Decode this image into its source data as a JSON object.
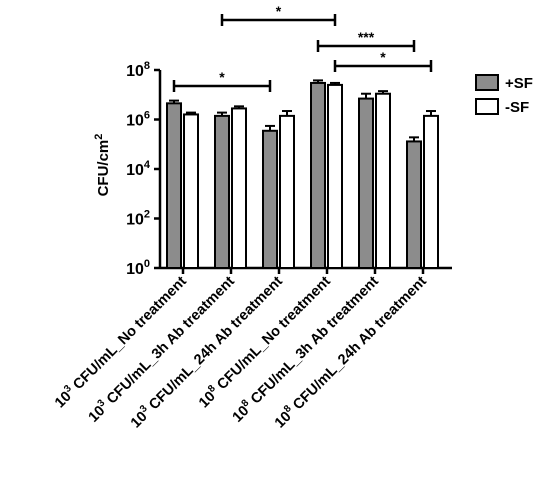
{
  "chart_data": {
    "type": "bar",
    "ylabel": "CFU/cm",
    "ylabel_sup": "2",
    "yscale": "log",
    "ylim": [
      1,
      100000000
    ],
    "yticks": [
      {
        "base": "10",
        "exp": "0",
        "value": 1
      },
      {
        "base": "10",
        "exp": "2",
        "value": 100
      },
      {
        "base": "10",
        "exp": "4",
        "value": 10000
      },
      {
        "base": "10",
        "exp": "6",
        "value": 1000000
      },
      {
        "base": "10",
        "exp": "8",
        "value": 100000000
      }
    ],
    "categories": [
      {
        "pre": "10",
        "sup": "3",
        "rest": " CFU/mL_No treatment"
      },
      {
        "pre": "10",
        "sup": "3",
        "rest": " CFU/mL_3h Ab treatment"
      },
      {
        "pre": "10",
        "sup": "3",
        "rest": " CFU/mL_24h Ab treatment"
      },
      {
        "pre": "10",
        "sup": "8",
        "rest": " CFU/mL_No treatment"
      },
      {
        "pre": "10",
        "sup": "8",
        "rest": " CFU/mL_3h Ab treatment"
      },
      {
        "pre": "10",
        "sup": "8",
        "rest": " CFU/mL_24h Ab treatment"
      }
    ],
    "series": [
      {
        "name": "+SF",
        "color": "#8c8c8c",
        "values": [
          4500000,
          1400000,
          350000,
          30000000,
          7000000,
          130000
        ],
        "errors": [
          5800000,
          1900000,
          550000,
          38000000,
          11000000,
          190000
        ]
      },
      {
        "name": "-SF",
        "color": "#ffffff",
        "values": [
          1600000,
          2800000,
          1400000,
          25000000,
          11000000,
          1400000
        ],
        "errors": [
          1900000,
          3400000,
          2200000,
          30000000,
          14000000,
          2200000
        ]
      }
    ],
    "legend_position": "right",
    "grid": false,
    "significance": [
      {
        "label": "*",
        "from_bar": [
          0,
          0
        ],
        "to_bar": [
          2,
          0
        ],
        "y_value": 250000000
      },
      {
        "label": "*",
        "from_bar": [
          1,
          0
        ],
        "to_bar": [
          3,
          1
        ],
        "y_value": 60000000000000
      },
      {
        "label": "***",
        "from_bar": [
          3,
          0
        ],
        "to_bar": [
          5,
          0
        ],
        "y_value": 4000000000
      },
      {
        "label": "*",
        "from_bar": [
          3,
          1
        ],
        "to_bar": [
          5,
          1
        ],
        "y_value": 1000000000
      }
    ]
  }
}
